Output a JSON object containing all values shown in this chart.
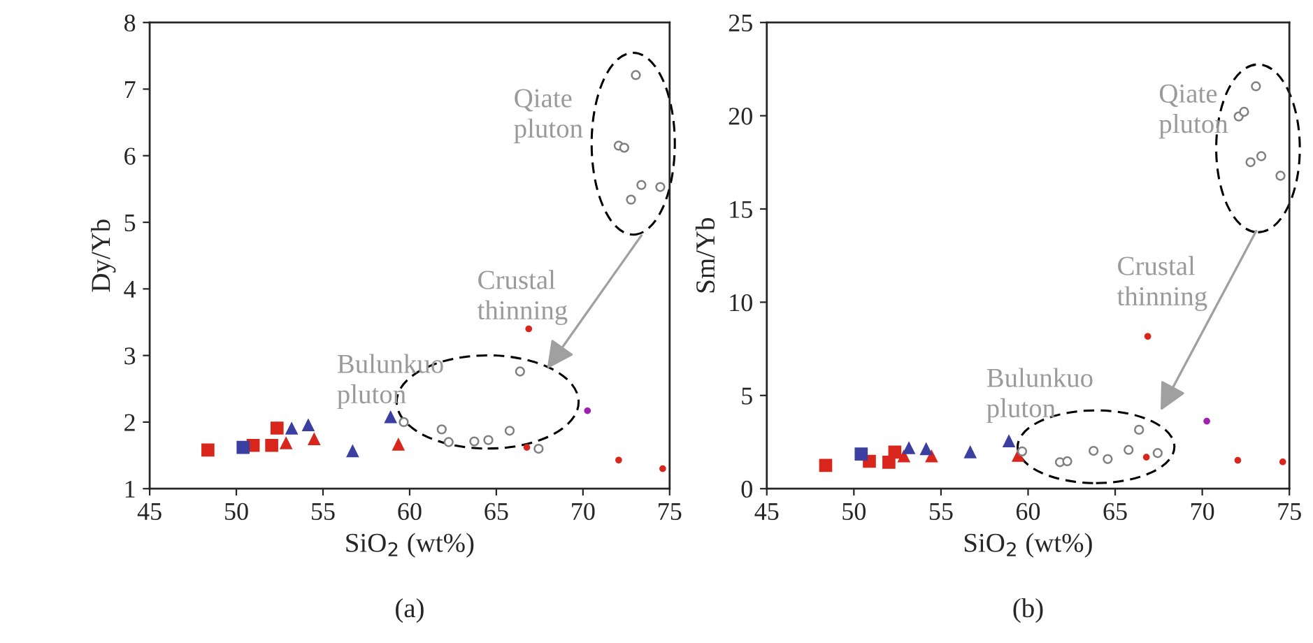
{
  "chart_data": [
    {
      "type": "scatter",
      "title": "(a)",
      "xlabel": "SiO$_{2}$ (wt%)",
      "ylabel": "Dy/Yb",
      "xlim": [
        45,
        75
      ],
      "xticks": [
        45,
        50,
        55,
        60,
        65,
        70,
        75
      ],
      "ylim": [
        1,
        8
      ],
      "yticks": [
        1,
        2,
        3,
        4,
        5,
        6,
        7,
        8
      ],
      "grid": false,
      "legend": false,
      "annotations": [
        "Qiate\npluton",
        "Crustal\nthinning",
        "Bulunkuo\npluton"
      ],
      "series": [
        {
          "color": "#d9261c",
          "marker": "square",
          "x": [
            48.36,
            50.97,
            52.04,
            52.35
          ],
          "values": [
            1.58,
            1.65,
            1.65,
            1.91
          ]
        },
        {
          "color": "#3a3fa0",
          "marker": "square",
          "x": [
            50.39
          ],
          "values": [
            1.62
          ]
        },
        {
          "color": "#d9261c",
          "marker": "triangle",
          "x": [
            52.87,
            54.49,
            59.35
          ],
          "values": [
            1.69,
            1.75,
            1.67
          ]
        },
        {
          "color": "#3a3fa0",
          "marker": "triangle",
          "x": [
            53.19,
            54.15,
            56.71,
            58.9
          ],
          "values": [
            1.91,
            1.96,
            1.57,
            2.08
          ]
        },
        {
          "color": "#808080",
          "marker": "circle",
          "x": [
            73.05,
            72.06,
            72.38,
            73.37,
            74.46,
            72.77,
            59.66,
            61.85,
            62.25,
            63.73,
            64.54,
            65.77,
            66.37,
            67.44
          ],
          "values": [
            7.21,
            6.15,
            6.12,
            5.56,
            5.53,
            5.34,
            2.0,
            1.89,
            1.7,
            1.71,
            1.73,
            1.87,
            2.76,
            1.6
          ]
        },
        {
          "color": "#d9261c",
          "marker": "circle",
          "x": [
            66.87,
            66.76,
            72.06,
            74.6
          ],
          "values": [
            3.4,
            1.62,
            1.43,
            1.3
          ]
        },
        {
          "color": "#a020b0",
          "marker": "circle",
          "x": [
            70.26
          ],
          "values": [
            2.17
          ]
        }
      ]
    },
    {
      "type": "scatter",
      "title": "(b)",
      "xlabel": "SiO$_{2}$ (wt%)",
      "ylabel": "Sm/Yb",
      "xlim": [
        45,
        75
      ],
      "xticks": [
        45,
        50,
        55,
        60,
        65,
        70,
        75
      ],
      "ylim": [
        0,
        25
      ],
      "yticks": [
        0,
        5,
        10,
        15,
        20,
        25
      ],
      "grid": false,
      "legend": false,
      "annotations": [
        "Qiate\npluton",
        "Crustal\nthinning",
        "Bulunkuo\npluton"
      ],
      "series": [
        {
          "color": "#d9261c",
          "marker": "square",
          "x": [
            48.38,
            50.89,
            52.01,
            52.35
          ],
          "values": [
            1.25,
            1.47,
            1.42,
            1.96
          ]
        },
        {
          "color": "#3a3fa0",
          "marker": "square",
          "x": [
            50.42
          ],
          "values": [
            1.86
          ]
        },
        {
          "color": "#d9261c",
          "marker": "triangle",
          "x": [
            52.87,
            54.46,
            59.43
          ],
          "values": [
            1.76,
            1.76,
            1.79
          ]
        },
        {
          "color": "#3a3fa0",
          "marker": "triangle",
          "x": [
            53.16,
            54.15,
            56.68,
            58.9
          ],
          "values": [
            2.2,
            2.15,
            1.98,
            2.57
          ]
        },
        {
          "color": "#808080",
          "marker": "circle",
          "x": [
            73.08,
            72.09,
            72.4,
            72.77,
            73.39,
            74.49,
            59.66,
            61.83,
            62.25,
            63.76,
            64.57,
            65.77,
            66.37,
            67.44
          ],
          "values": [
            21.58,
            19.96,
            20.21,
            17.51,
            17.83,
            16.78,
            2.0,
            1.42,
            1.47,
            2.03,
            1.59,
            2.08,
            3.16,
            1.91
          ]
        },
        {
          "color": "#d9261c",
          "marker": "circle",
          "x": [
            66.87,
            66.79,
            72.04,
            74.62
          ],
          "values": [
            8.17,
            1.69,
            1.52,
            1.44
          ]
        },
        {
          "color": "#a020b0",
          "marker": "circle",
          "x": [
            70.26
          ],
          "values": [
            3.62
          ]
        }
      ]
    }
  ]
}
